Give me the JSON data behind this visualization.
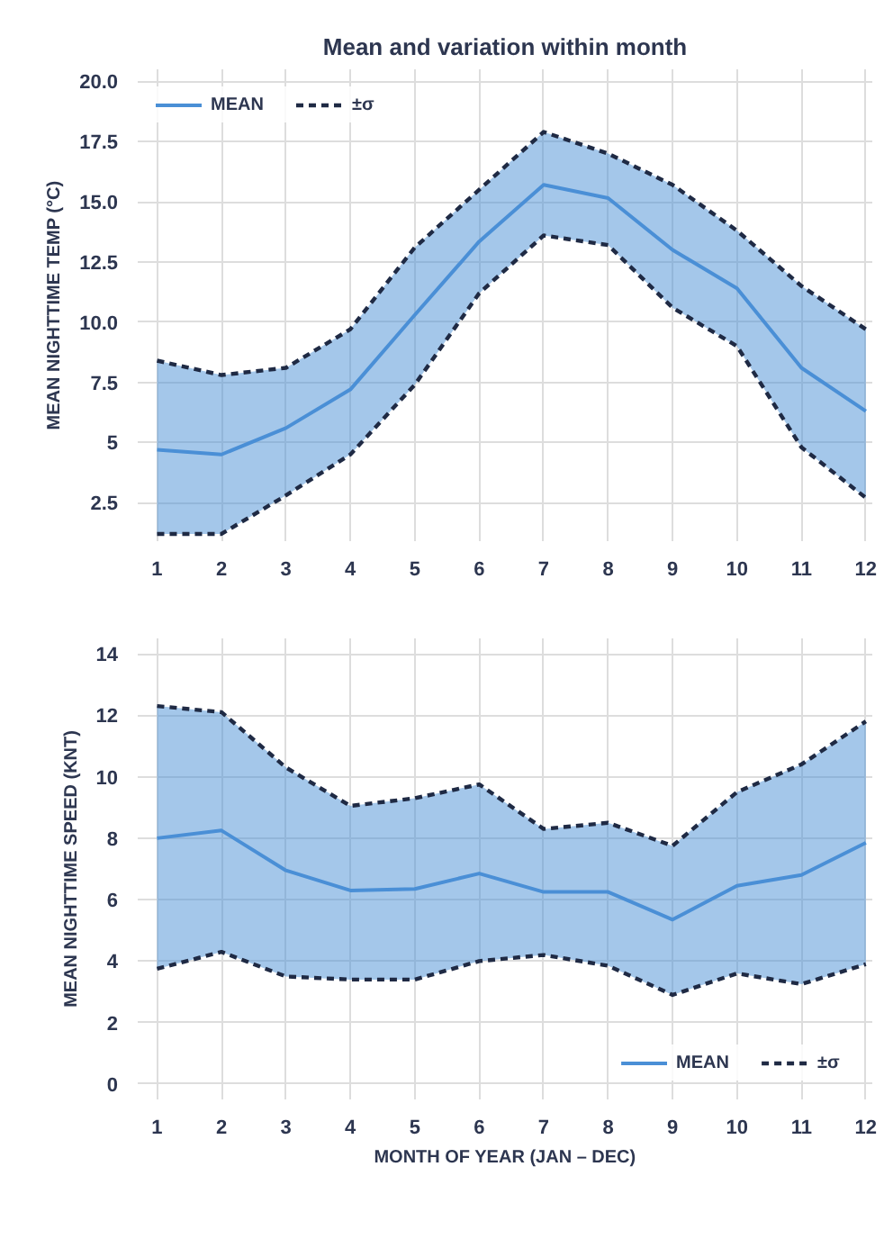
{
  "chart_data": [
    {
      "type": "line",
      "title": "Mean and variation within month",
      "ylabel": "MEAN NIGHTTIME TEMP (°C)",
      "x": [
        1,
        2,
        3,
        4,
        5,
        6,
        7,
        8,
        9,
        10,
        11,
        12
      ],
      "xlim": [
        0.7,
        12.1
      ],
      "xticks": [
        1,
        2,
        3,
        4,
        5,
        6,
        7,
        8,
        9,
        10,
        11,
        12
      ],
      "ylim": [
        0.9,
        20.5
      ],
      "yticks": [
        2.5,
        5,
        7.5,
        {
          "value": 10,
          "label": "10.0"
        },
        12.5,
        {
          "value": 15,
          "label": "15.0"
        },
        17.5,
        {
          "value": 20,
          "label": "20.0"
        }
      ],
      "grid": true,
      "legend": "top left",
      "series": [
        {
          "name": "MEAN",
          "color": "#4a8fd6",
          "values": [
            4.7,
            4.5,
            5.6,
            7.2,
            10.3,
            13.35,
            15.7,
            15.15,
            13.0,
            11.4,
            8.1,
            6.3
          ],
          "lower": [
            1.2,
            1.2,
            2.8,
            4.5,
            7.4,
            11.2,
            13.6,
            13.2,
            10.6,
            9.0,
            4.8,
            2.7
          ],
          "upper": [
            8.4,
            7.8,
            8.1,
            9.7,
            13.1,
            15.5,
            17.9,
            17.0,
            15.7,
            13.8,
            11.5,
            9.7
          ]
        },
        {
          "name": "±σ",
          "color": "#1f2a44",
          "line_style": "dashed",
          "values": [
            8.4,
            7.8,
            8.1,
            9.7,
            13.1,
            15.5,
            17.9,
            17.0,
            15.7,
            13.8,
            11.5,
            9.7
          ]
        },
        {
          "color": "#1f2a44",
          "line_style": "dashed",
          "values": [
            1.2,
            1.2,
            2.8,
            4.5,
            7.4,
            11.2,
            13.6,
            13.2,
            10.6,
            9.0,
            4.8,
            2.7
          ]
        }
      ]
    },
    {
      "type": "line",
      "ylabel": "MEAN NIGHTTIME SPEED (KNT)",
      "xlabel": "MONTH OF YEAR (JAN – DEC)",
      "x": [
        1,
        2,
        3,
        4,
        5,
        6,
        7,
        8,
        9,
        10,
        11,
        12
      ],
      "xlim": [
        0.7,
        12.1
      ],
      "xticks": [
        1,
        2,
        3,
        4,
        5,
        6,
        7,
        8,
        9,
        10,
        11,
        12
      ],
      "ylim": [
        -0.5,
        14.5
      ],
      "yticks": [
        0,
        2,
        4,
        6,
        8,
        10,
        12,
        14
      ],
      "grid": true,
      "legend": "bottom right",
      "series": [
        {
          "name": "MEAN",
          "color": "#4a8fd6",
          "values": [
            8.0,
            8.25,
            6.95,
            6.3,
            6.35,
            6.85,
            6.25,
            6.25,
            5.35,
            6.45,
            6.8,
            7.85
          ],
          "lower": [
            3.75,
            4.3,
            3.5,
            3.4,
            3.4,
            4.0,
            4.2,
            3.85,
            2.9,
            3.6,
            3.25,
            3.9
          ],
          "upper": [
            12.3,
            12.1,
            10.3,
            9.05,
            9.3,
            9.75,
            8.3,
            8.5,
            7.75,
            9.5,
            10.4,
            11.8
          ]
        },
        {
          "name": "±σ",
          "color": "#1f2a44",
          "line_style": "dashed",
          "values": [
            12.3,
            12.1,
            10.3,
            9.05,
            9.3,
            9.75,
            8.3,
            8.5,
            7.75,
            9.5,
            10.4,
            11.8
          ]
        },
        {
          "color": "#1f2a44",
          "line_style": "dashed",
          "values": [
            3.75,
            4.3,
            3.5,
            3.4,
            3.4,
            4.0,
            4.2,
            3.85,
            2.9,
            3.6,
            3.25,
            3.9
          ]
        }
      ]
    }
  ]
}
